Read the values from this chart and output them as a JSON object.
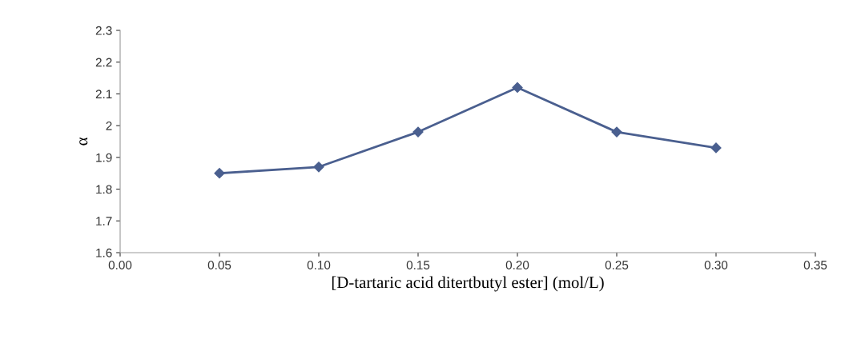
{
  "chart_data": {
    "type": "line",
    "xlabel": "[D-tartaric acid ditertbutyl ester] (mol/L)",
    "ylabel": "α",
    "x": [
      0.05,
      0.1,
      0.15,
      0.2,
      0.25,
      0.3
    ],
    "series": [
      {
        "color": "#4a5f8f",
        "values": [
          1.85,
          1.87,
          1.98,
          2.12,
          1.98,
          1.93
        ]
      }
    ],
    "xlim": [
      0,
      0.35
    ],
    "xticks": [
      {
        "value": 0,
        "label": "0.00"
      },
      {
        "value": 0.05,
        "label": "0.05"
      },
      {
        "value": 0.1,
        "label": "0.10"
      },
      {
        "value": 0.15,
        "label": "0.15"
      },
      {
        "value": 0.2,
        "label": "0.20"
      },
      {
        "value": 0.25,
        "label": "0.25"
      },
      {
        "value": 0.3,
        "label": "0.30"
      },
      {
        "value": 0.35,
        "label": "0.35"
      }
    ],
    "ylim": [
      1.6,
      2.3
    ],
    "yticks": [
      1.6,
      1.7,
      1.8,
      1.9,
      2,
      2.1,
      2.2,
      2.3
    ],
    "marker": "diamond",
    "grid": false,
    "legend": false
  }
}
